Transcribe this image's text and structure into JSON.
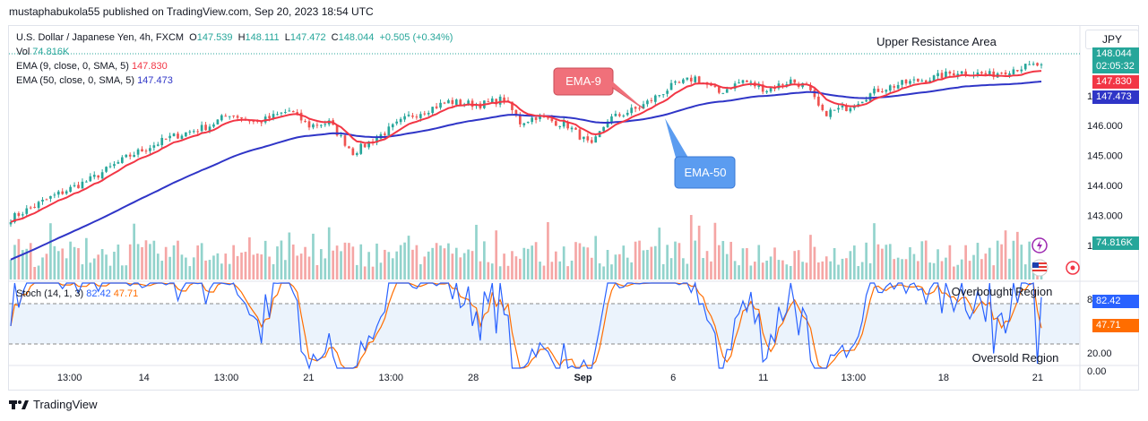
{
  "publisher": "mustaphabukola55 published on TradingView.com, Sep 20, 2023 18:54 UTC",
  "legend": {
    "symbol": "U.S. Dollar / Japanese Yen, 4h, FXCM",
    "o_label": "O",
    "o": "147.539",
    "h_label": "H",
    "h": "148.111",
    "l_label": "L",
    "l": "147.472",
    "c_label": "C",
    "c": "148.044",
    "change": "+0.505 (+0.34%)",
    "vol_label": "Vol",
    "vol": "74.816K",
    "ema9_label": "EMA (9, close, 0, SMA, 5)",
    "ema9": "147.830",
    "ema50_label": "EMA (50, close, 0, SMA, 5)",
    "ema50": "147.473",
    "stoch_label": "Stoch (14, 1, 3)",
    "stoch_k": "82.42",
    "stoch_d": "47.71"
  },
  "currency_button": "JPY",
  "annotations": {
    "ema9": "EMA-9",
    "ema50": "EMA-50",
    "resistance": "Upper Resistance Area",
    "overbought": "Overbought Region",
    "oversold": "Oversold Region"
  },
  "price_badges": {
    "last": "148.044",
    "countdown": "02:05:32",
    "ema9": "147.830",
    "ema50": "147.473",
    "vol": "74.816K",
    "k": "82.42",
    "d": "47.71"
  },
  "colors": {
    "up": "#26a69a",
    "down": "#ef5350",
    "ema9": "#f23645",
    "ema50": "#2f35c7",
    "stoch_k": "#2962ff",
    "stoch_d": "#ff6d00",
    "vol_up": "#92d3cc",
    "vol_down": "#f5a6a5",
    "ema9_callout": "#f0707a",
    "ema50_callout": "#5b9cf0"
  },
  "footer": "TradingView",
  "chart_data": [
    {
      "type": "candlestick",
      "title": "U.S. Dollar / Japanese Yen, 4h, FXCM",
      "y_ticks": [
        "147.000",
        "146.000",
        "145.000",
        "144.000",
        "143.000",
        "142.000"
      ],
      "ylim": [
        141.4,
        148.4
      ],
      "x_ticks": [
        "13:00",
        "14",
        "13:00",
        "21",
        "13:00",
        "28",
        "Sep",
        "6",
        "11",
        "13:00",
        "18",
        "21"
      ],
      "close_keypoints": [
        [
          0,
          142.9
        ],
        [
          10,
          143.6
        ],
        [
          20,
          144.2
        ],
        [
          30,
          145.0
        ],
        [
          40,
          145.6
        ],
        [
          50,
          146.0
        ],
        [
          55,
          146.4
        ],
        [
          62,
          146.1
        ],
        [
          70,
          146.5
        ],
        [
          75,
          146.0
        ],
        [
          80,
          146.1
        ],
        [
          86,
          145.1
        ],
        [
          92,
          145.6
        ],
        [
          100,
          146.3
        ],
        [
          110,
          146.8
        ],
        [
          118,
          146.7
        ],
        [
          124,
          146.9
        ],
        [
          128,
          146.1
        ],
        [
          132,
          146.3
        ],
        [
          140,
          146.0
        ],
        [
          146,
          145.3
        ],
        [
          150,
          146.2
        ],
        [
          158,
          146.6
        ],
        [
          166,
          147.3
        ],
        [
          172,
          147.6
        ],
        [
          178,
          147.1
        ],
        [
          184,
          147.5
        ],
        [
          190,
          147.2
        ],
        [
          196,
          147.5
        ],
        [
          200,
          147.3
        ],
        [
          204,
          146.4
        ],
        [
          210,
          146.6
        ],
        [
          218,
          147.2
        ],
        [
          224,
          147.4
        ],
        [
          232,
          147.6
        ],
        [
          238,
          147.8
        ],
        [
          246,
          147.7
        ],
        [
          252,
          147.9
        ],
        [
          259,
          148.04
        ]
      ],
      "ema9_end": 147.83,
      "ema50_end": 147.473,
      "last_close": 148.044
    },
    {
      "type": "bar",
      "title": "Vol",
      "last_value": "74.816K"
    },
    {
      "type": "line",
      "title": "Stoch (14, 1, 3)",
      "y_ticks": [
        "80.00",
        "20.00",
        "0.00"
      ],
      "ylim": [
        0,
        100
      ],
      "series": [
        {
          "name": "%K",
          "last_value": 82.42
        },
        {
          "name": "%D",
          "last_value": 47.71
        }
      ]
    }
  ]
}
